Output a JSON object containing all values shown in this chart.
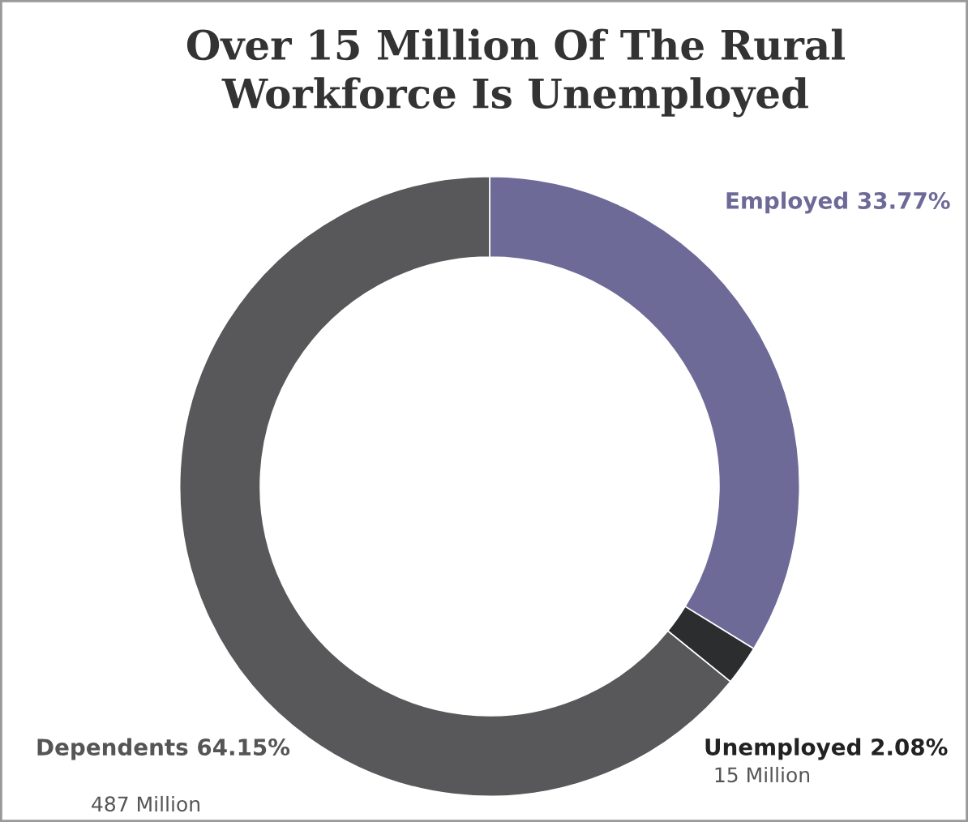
{
  "chart_data": {
    "type": "donut",
    "title": "Over 15 Million Of The Rural\nWorkforce Is Unemployed",
    "categories": [
      "Employed",
      "Unemployed",
      "Dependents"
    ],
    "values": [
      33.77,
      2.08,
      64.15
    ],
    "colors": [
      "#6e6a98",
      "#2b2d2f",
      "#58585a"
    ],
    "value_labels": [
      "33.77%",
      "2.08%",
      "64.15%"
    ],
    "annotations": [
      {
        "text": "15 Million",
        "x": "Unemployed"
      },
      {
        "text": "487 Million",
        "x": "Dependents"
      }
    ],
    "legend": false
  }
}
